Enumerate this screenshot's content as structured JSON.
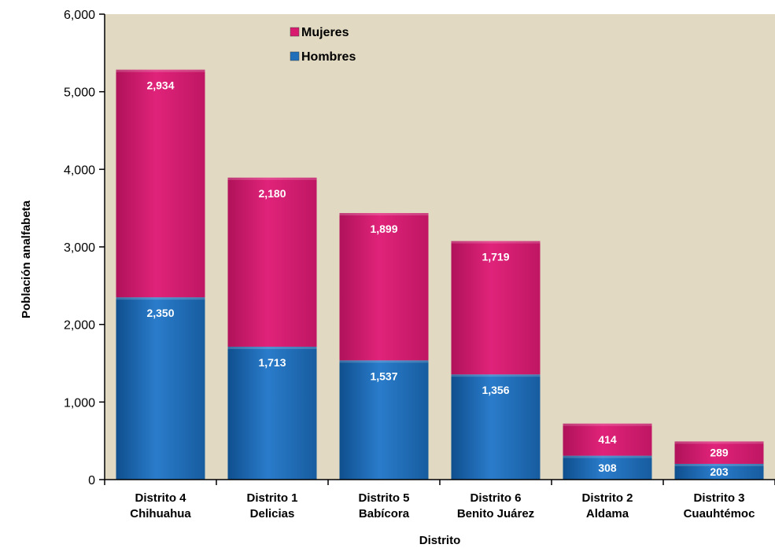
{
  "chart_data": {
    "type": "bar",
    "stacked": true,
    "categories": [
      [
        "Distrito 4",
        "Chihuahua"
      ],
      [
        "Distrito 1",
        "Delicias"
      ],
      [
        "Distrito 5",
        "Babícora"
      ],
      [
        "Distrito 6",
        "Benito Juárez"
      ],
      [
        "Distrito 2",
        "Aldama"
      ],
      [
        "Distrito 3",
        "Cuauhtémoc"
      ]
    ],
    "series": [
      {
        "name": "Hombres",
        "color": "#1f6fba",
        "values": [
          2350,
          1713,
          1537,
          1356,
          308,
          203
        ],
        "labels": [
          "2,350",
          "1,713",
          "1,537",
          "1,356",
          "308",
          "203"
        ]
      },
      {
        "name": "Mujeres",
        "color": "#d81b6f",
        "values": [
          2934,
          2180,
          1899,
          1719,
          414,
          289
        ],
        "labels": [
          "2,934",
          "2,180",
          "1,899",
          "1,719",
          "414",
          "289"
        ]
      }
    ],
    "xlabel": "Distrito",
    "ylabel": "Población analfabeta",
    "ylim": [
      0,
      6000
    ],
    "yticks": [
      0,
      1000,
      2000,
      3000,
      4000,
      5000,
      6000
    ],
    "ytick_labels": [
      "0",
      "1,000",
      "2,000",
      "3,000",
      "4,000",
      "5,000",
      "6,000"
    ],
    "legend": {
      "placement": "top-center",
      "order": [
        "Mujeres",
        "Hombres"
      ]
    },
    "plot_background": "#e1d9c1",
    "grid": false
  }
}
